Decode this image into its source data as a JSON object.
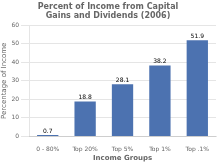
{
  "chart_data": {
    "type": "bar",
    "title": "Percent of Income from Capital\nGains and Dividends (2006)",
    "xlabel": "Income Groups",
    "ylabel": "Percentage of Income",
    "categories": [
      "0 - 80%",
      "Top 20%",
      "Top 5%",
      "Top 1%",
      "Top .1%"
    ],
    "values": [
      0.7,
      18.8,
      28.1,
      38.2,
      51.9
    ],
    "color": "#4c72b0",
    "ylim": [
      0,
      60
    ],
    "yticks": [
      0,
      10,
      20,
      30,
      40,
      50,
      60
    ],
    "grid": true,
    "data_labels": true
  }
}
